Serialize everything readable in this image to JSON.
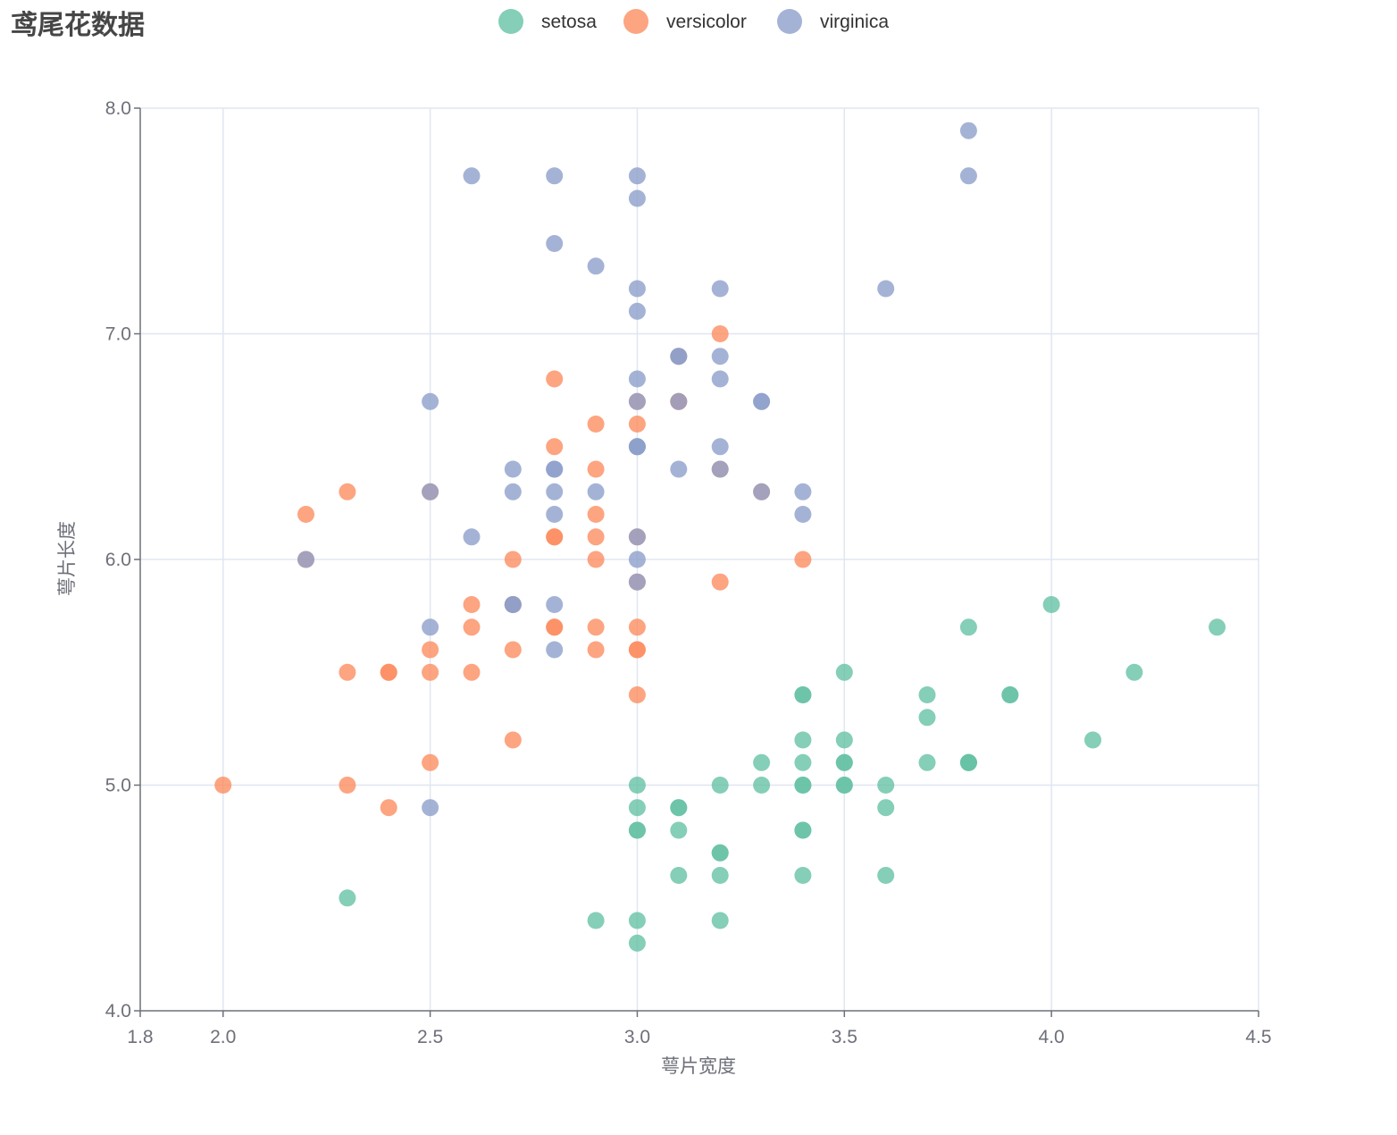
{
  "chart_data": {
    "type": "scatter",
    "title": "鸢尾花数据",
    "xlabel": "萼片宽度",
    "ylabel": "萼片长度",
    "xlim": [
      1.8,
      4.5
    ],
    "ylim": [
      4.0,
      8.0
    ],
    "x_ticks": [
      1.8,
      2.0,
      2.5,
      3.0,
      3.5,
      4.0,
      4.5
    ],
    "x_tick_labels": [
      "1.8",
      "2.0",
      "2.5",
      "3.0",
      "3.5",
      "4.0",
      "4.5"
    ],
    "y_ticks": [
      4.0,
      5.0,
      6.0,
      7.0,
      8.0
    ],
    "y_tick_labels": [
      "4.0",
      "5.0",
      "6.0",
      "7.0",
      "8.0"
    ],
    "grid": true,
    "legend_position": "top-center",
    "series": [
      {
        "name": "setosa",
        "color": "#66c2a5",
        "points": [
          [
            3.5,
            5.1
          ],
          [
            3.0,
            4.9
          ],
          [
            3.2,
            4.7
          ],
          [
            3.1,
            4.6
          ],
          [
            3.6,
            5.0
          ],
          [
            3.9,
            5.4
          ],
          [
            3.4,
            4.6
          ],
          [
            3.4,
            5.0
          ],
          [
            2.9,
            4.4
          ],
          [
            3.1,
            4.9
          ],
          [
            3.7,
            5.4
          ],
          [
            3.4,
            4.8
          ],
          [
            3.0,
            4.8
          ],
          [
            3.0,
            4.3
          ],
          [
            4.0,
            5.8
          ],
          [
            4.4,
            5.7
          ],
          [
            3.9,
            5.4
          ],
          [
            3.5,
            5.1
          ],
          [
            3.8,
            5.7
          ],
          [
            3.8,
            5.1
          ],
          [
            3.4,
            5.4
          ],
          [
            3.7,
            5.1
          ],
          [
            3.6,
            4.6
          ],
          [
            3.3,
            5.1
          ],
          [
            3.4,
            4.8
          ],
          [
            3.0,
            5.0
          ],
          [
            3.4,
            5.0
          ],
          [
            3.5,
            5.2
          ],
          [
            3.4,
            5.2
          ],
          [
            3.2,
            4.7
          ],
          [
            3.1,
            4.8
          ],
          [
            3.4,
            5.4
          ],
          [
            4.1,
            5.2
          ],
          [
            4.2,
            5.5
          ],
          [
            3.1,
            4.9
          ],
          [
            3.2,
            5.0
          ],
          [
            3.5,
            5.5
          ],
          [
            3.6,
            4.9
          ],
          [
            3.0,
            4.4
          ],
          [
            3.4,
            5.1
          ],
          [
            3.5,
            5.0
          ],
          [
            2.3,
            4.5
          ],
          [
            3.2,
            4.4
          ],
          [
            3.5,
            5.0
          ],
          [
            3.8,
            5.1
          ],
          [
            3.0,
            4.8
          ],
          [
            3.8,
            5.1
          ],
          [
            3.2,
            4.6
          ],
          [
            3.7,
            5.3
          ],
          [
            3.3,
            5.0
          ]
        ]
      },
      {
        "name": "versicolor",
        "color": "#fc8d62",
        "points": [
          [
            3.2,
            7.0
          ],
          [
            3.2,
            6.4
          ],
          [
            3.1,
            6.9
          ],
          [
            2.3,
            5.5
          ],
          [
            2.8,
            6.5
          ],
          [
            2.8,
            5.7
          ],
          [
            3.3,
            6.3
          ],
          [
            2.4,
            4.9
          ],
          [
            2.9,
            6.6
          ],
          [
            2.7,
            5.2
          ],
          [
            2.0,
            5.0
          ],
          [
            3.0,
            5.9
          ],
          [
            2.2,
            6.0
          ],
          [
            2.9,
            6.1
          ],
          [
            2.9,
            5.6
          ],
          [
            3.1,
            6.7
          ],
          [
            3.0,
            5.6
          ],
          [
            2.7,
            5.8
          ],
          [
            2.2,
            6.2
          ],
          [
            2.5,
            5.6
          ],
          [
            3.2,
            5.9
          ],
          [
            2.8,
            6.1
          ],
          [
            2.5,
            6.3
          ],
          [
            2.8,
            6.1
          ],
          [
            2.9,
            6.4
          ],
          [
            3.0,
            6.6
          ],
          [
            2.8,
            6.8
          ],
          [
            3.0,
            6.7
          ],
          [
            2.9,
            6.0
          ],
          [
            2.6,
            5.7
          ],
          [
            2.4,
            5.5
          ],
          [
            2.4,
            5.5
          ],
          [
            2.7,
            5.8
          ],
          [
            2.7,
            6.0
          ],
          [
            3.0,
            5.4
          ],
          [
            3.4,
            6.0
          ],
          [
            3.1,
            6.7
          ],
          [
            2.3,
            6.3
          ],
          [
            3.0,
            5.6
          ],
          [
            2.5,
            5.5
          ],
          [
            2.6,
            5.5
          ],
          [
            3.0,
            6.1
          ],
          [
            2.6,
            5.8
          ],
          [
            2.3,
            5.0
          ],
          [
            2.7,
            5.6
          ],
          [
            3.0,
            5.7
          ],
          [
            2.9,
            5.7
          ],
          [
            2.9,
            6.2
          ],
          [
            2.5,
            5.1
          ],
          [
            2.8,
            5.7
          ]
        ]
      },
      {
        "name": "virginica",
        "color": "#8da0cb",
        "points": [
          [
            3.3,
            6.3
          ],
          [
            2.7,
            5.8
          ],
          [
            3.0,
            7.1
          ],
          [
            2.9,
            6.3
          ],
          [
            3.0,
            6.5
          ],
          [
            3.0,
            7.6
          ],
          [
            2.5,
            4.9
          ],
          [
            2.9,
            7.3
          ],
          [
            2.5,
            6.7
          ],
          [
            3.6,
            7.2
          ],
          [
            3.2,
            6.5
          ],
          [
            2.7,
            6.4
          ],
          [
            3.0,
            6.8
          ],
          [
            2.5,
            5.7
          ],
          [
            2.8,
            5.8
          ],
          [
            3.2,
            6.4
          ],
          [
            3.0,
            6.5
          ],
          [
            3.8,
            7.7
          ],
          [
            2.6,
            7.7
          ],
          [
            2.2,
            6.0
          ],
          [
            3.2,
            6.9
          ],
          [
            2.8,
            5.6
          ],
          [
            2.8,
            7.7
          ],
          [
            2.7,
            6.3
          ],
          [
            3.3,
            6.7
          ],
          [
            3.2,
            7.2
          ],
          [
            2.8,
            6.2
          ],
          [
            3.0,
            6.1
          ],
          [
            2.8,
            6.4
          ],
          [
            3.0,
            7.2
          ],
          [
            2.8,
            7.4
          ],
          [
            3.8,
            7.9
          ],
          [
            2.8,
            6.4
          ],
          [
            2.8,
            6.3
          ],
          [
            2.6,
            6.1
          ],
          [
            3.0,
            7.7
          ],
          [
            3.4,
            6.3
          ],
          [
            3.1,
            6.4
          ],
          [
            3.0,
            6.0
          ],
          [
            3.1,
            6.9
          ],
          [
            3.1,
            6.7
          ],
          [
            3.1,
            6.9
          ],
          [
            2.7,
            5.8
          ],
          [
            3.2,
            6.8
          ],
          [
            3.3,
            6.7
          ],
          [
            3.0,
            6.7
          ],
          [
            2.5,
            6.3
          ],
          [
            3.0,
            6.5
          ],
          [
            3.4,
            6.2
          ],
          [
            3.0,
            5.9
          ]
        ]
      }
    ]
  }
}
